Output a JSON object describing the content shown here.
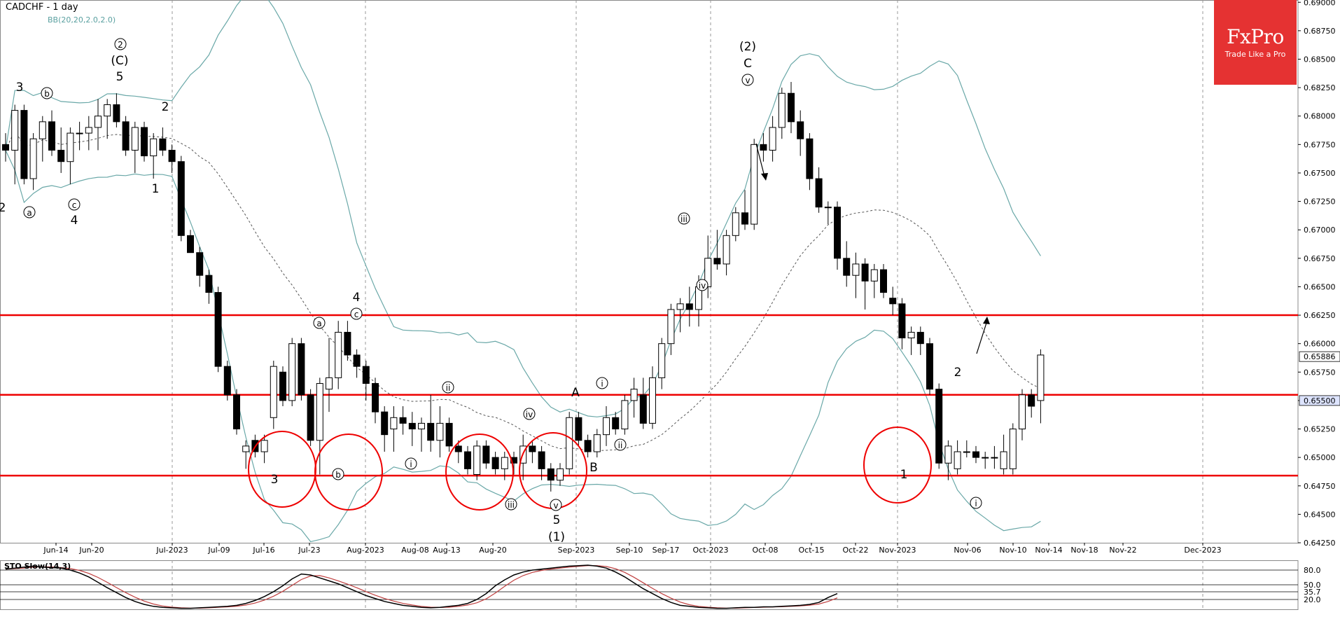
{
  "header": {
    "title": "CADCHF - 1 day",
    "bb_legend": "BB(20,20,2.0,2.0)"
  },
  "logo": {
    "brand": "FxPro",
    "tagline": "Trade Like a Pro"
  },
  "stochastic": {
    "legend": "STO Slow(14,3)",
    "levels": [
      "80.0",
      "50.0",
      "35.7",
      "20.0"
    ]
  },
  "colors": {
    "bull_body": "#ffffff",
    "bear_body": "#000000",
    "bands": "#6aa8a8",
    "middle_band": "#555555",
    "levels": "#ee0000",
    "circles": "#ee0000",
    "brand": "#e53232",
    "sto_main": "#000000",
    "sto_signal": "#c04040"
  },
  "chart_data": {
    "type": "candlestick",
    "symbol": "CADCHF",
    "timeframe": "1 day",
    "ylim": [
      0.6425,
      0.6902
    ],
    "y_ticks": [
      "0.69000",
      "0.68750",
      "0.68500",
      "0.68250",
      "0.68000",
      "0.67750",
      "0.67500",
      "0.67250",
      "0.67000",
      "0.66750",
      "0.66500",
      "0.66250",
      "0.66000",
      "0.65750",
      "0.65500",
      "0.65250",
      "0.65000",
      "0.64750",
      "0.64500",
      "0.64250"
    ],
    "price_tags": [
      "0.65886",
      "0.65500"
    ],
    "x_ticks": [
      "Jun-14",
      "Jun-20",
      "Jul-2023",
      "Jul-09",
      "Jul-16",
      "Jul-23",
      "Aug-2023",
      "Aug-08",
      "Aug-13",
      "Aug-20",
      "Sep-2023",
      "Sep-10",
      "Sep-17",
      "Oct-2023",
      "Oct-08",
      "Oct-15",
      "Oct-22",
      "Nov-2023",
      "Nov-06",
      "Nov-10",
      "Nov-14",
      "Nov-18",
      "Nov-22",
      "Dec-2023"
    ],
    "horizontal_levels": [
      0.6625,
      0.6555,
      0.6484
    ],
    "candles": [
      [
        0.6775,
        0.6785,
        0.676,
        0.677
      ],
      [
        0.677,
        0.681,
        0.674,
        0.6805
      ],
      [
        0.6805,
        0.681,
        0.674,
        0.6745
      ],
      [
        0.6745,
        0.6785,
        0.6735,
        0.678
      ],
      [
        0.678,
        0.68,
        0.676,
        0.6795
      ],
      [
        0.6795,
        0.6805,
        0.6765,
        0.677
      ],
      [
        0.677,
        0.679,
        0.675,
        0.676
      ],
      [
        0.676,
        0.679,
        0.674,
        0.6785
      ],
      [
        0.6785,
        0.6795,
        0.677,
        0.6785
      ],
      [
        0.6785,
        0.68,
        0.677,
        0.679
      ],
      [
        0.679,
        0.6815,
        0.677,
        0.68
      ],
      [
        0.68,
        0.6815,
        0.678,
        0.681
      ],
      [
        0.681,
        0.682,
        0.679,
        0.6795
      ],
      [
        0.6795,
        0.68,
        0.6765,
        0.677
      ],
      [
        0.677,
        0.6795,
        0.675,
        0.679
      ],
      [
        0.679,
        0.6795,
        0.676,
        0.6765
      ],
      [
        0.6765,
        0.6785,
        0.6745,
        0.678
      ],
      [
        0.678,
        0.679,
        0.6765,
        0.677
      ],
      [
        0.677,
        0.6775,
        0.675,
        0.676
      ],
      [
        0.676,
        0.6765,
        0.669,
        0.6695
      ],
      [
        0.6695,
        0.67,
        0.668,
        0.668
      ],
      [
        0.668,
        0.6685,
        0.665,
        0.666
      ],
      [
        0.666,
        0.6665,
        0.6635,
        0.6645
      ],
      [
        0.6645,
        0.665,
        0.6575,
        0.658
      ],
      [
        0.658,
        0.6585,
        0.655,
        0.6555
      ],
      [
        0.6555,
        0.656,
        0.652,
        0.6525
      ],
      [
        0.6505,
        0.6515,
        0.649,
        0.651
      ],
      [
        0.6515,
        0.652,
        0.65,
        0.6505
      ],
      [
        0.6505,
        0.652,
        0.6495,
        0.6515
      ],
      [
        0.6535,
        0.6585,
        0.6525,
        0.658
      ],
      [
        0.6575,
        0.658,
        0.6545,
        0.655
      ],
      [
        0.655,
        0.6605,
        0.6545,
        0.66
      ],
      [
        0.66,
        0.6605,
        0.655,
        0.6555
      ],
      [
        0.6555,
        0.656,
        0.651,
        0.6515
      ],
      [
        0.6515,
        0.657,
        0.6485,
        0.6565
      ],
      [
        0.656,
        0.6605,
        0.654,
        0.657
      ],
      [
        0.657,
        0.662,
        0.656,
        0.661
      ],
      [
        0.661,
        0.662,
        0.6585,
        0.659
      ],
      [
        0.659,
        0.6595,
        0.657,
        0.658
      ],
      [
        0.658,
        0.6585,
        0.655,
        0.6565
      ],
      [
        0.6565,
        0.657,
        0.653,
        0.654
      ],
      [
        0.654,
        0.6545,
        0.6505,
        0.652
      ],
      [
        0.6525,
        0.6545,
        0.6505,
        0.6535
      ],
      [
        0.6535,
        0.6545,
        0.652,
        0.653
      ],
      [
        0.653,
        0.654,
        0.651,
        0.6525
      ],
      [
        0.6525,
        0.6535,
        0.6505,
        0.653
      ],
      [
        0.653,
        0.6555,
        0.6505,
        0.6515
      ],
      [
        0.6515,
        0.6545,
        0.65,
        0.653
      ],
      [
        0.653,
        0.6535,
        0.6505,
        0.651
      ],
      [
        0.651,
        0.6515,
        0.6495,
        0.6505
      ],
      [
        0.6505,
        0.651,
        0.6485,
        0.649
      ],
      [
        0.6485,
        0.6515,
        0.648,
        0.651
      ],
      [
        0.651,
        0.6515,
        0.649,
        0.6495
      ],
      [
        0.65,
        0.6505,
        0.6485,
        0.649
      ],
      [
        0.649,
        0.6505,
        0.648,
        0.65
      ],
      [
        0.65,
        0.6505,
        0.6485,
        0.6495
      ],
      [
        0.6495,
        0.652,
        0.648,
        0.651
      ],
      [
        0.651,
        0.6515,
        0.6495,
        0.6505
      ],
      [
        0.6505,
        0.651,
        0.648,
        0.649
      ],
      [
        0.649,
        0.6495,
        0.647,
        0.648
      ],
      [
        0.648,
        0.6495,
        0.6475,
        0.649
      ],
      [
        0.649,
        0.654,
        0.6485,
        0.6535
      ],
      [
        0.6535,
        0.654,
        0.651,
        0.6515
      ],
      [
        0.6515,
        0.652,
        0.65,
        0.6505
      ],
      [
        0.6505,
        0.6525,
        0.65,
        0.652
      ],
      [
        0.652,
        0.6545,
        0.651,
        0.6535
      ],
      [
        0.6535,
        0.654,
        0.652,
        0.6525
      ],
      [
        0.6525,
        0.6555,
        0.652,
        0.655
      ],
      [
        0.655,
        0.657,
        0.6535,
        0.656
      ],
      [
        0.6555,
        0.657,
        0.6525,
        0.653
      ],
      [
        0.653,
        0.658,
        0.6525,
        0.657
      ],
      [
        0.657,
        0.6605,
        0.656,
        0.66
      ],
      [
        0.66,
        0.6635,
        0.659,
        0.663
      ],
      [
        0.663,
        0.664,
        0.661,
        0.6635
      ],
      [
        0.6635,
        0.665,
        0.6615,
        0.663
      ],
      [
        0.663,
        0.666,
        0.6615,
        0.665
      ],
      [
        0.665,
        0.6695,
        0.664,
        0.6675
      ],
      [
        0.6675,
        0.67,
        0.6665,
        0.667
      ],
      [
        0.667,
        0.67,
        0.666,
        0.6695
      ],
      [
        0.6695,
        0.672,
        0.669,
        0.6715
      ],
      [
        0.6715,
        0.6735,
        0.67,
        0.6705
      ],
      [
        0.6705,
        0.678,
        0.67,
        0.6775
      ],
      [
        0.6775,
        0.6785,
        0.676,
        0.677
      ],
      [
        0.677,
        0.68,
        0.676,
        0.679
      ],
      [
        0.679,
        0.6825,
        0.678,
        0.682
      ],
      [
        0.682,
        0.683,
        0.6785,
        0.6795
      ],
      [
        0.6795,
        0.6805,
        0.6765,
        0.678
      ],
      [
        0.678,
        0.6785,
        0.6735,
        0.6745
      ],
      [
        0.6745,
        0.6755,
        0.6715,
        0.672
      ],
      [
        0.672,
        0.6725,
        0.6705,
        0.672
      ],
      [
        0.672,
        0.6725,
        0.6665,
        0.6675
      ],
      [
        0.6675,
        0.669,
        0.665,
        0.666
      ],
      [
        0.666,
        0.668,
        0.664,
        0.667
      ],
      [
        0.667,
        0.6675,
        0.663,
        0.6655
      ],
      [
        0.6655,
        0.667,
        0.664,
        0.6665
      ],
      [
        0.6665,
        0.667,
        0.664,
        0.6645
      ],
      [
        0.664,
        0.665,
        0.6625,
        0.6635
      ],
      [
        0.6635,
        0.664,
        0.6595,
        0.6605
      ],
      [
        0.6605,
        0.6615,
        0.659,
        0.661
      ],
      [
        0.661,
        0.6615,
        0.659,
        0.66
      ],
      [
        0.66,
        0.6605,
        0.6555,
        0.656
      ],
      [
        0.656,
        0.6565,
        0.649,
        0.6495
      ],
      [
        0.6495,
        0.6515,
        0.648,
        0.651
      ],
      [
        0.649,
        0.6515,
        0.6485,
        0.6505
      ],
      [
        0.6505,
        0.6515,
        0.65,
        0.6505
      ],
      [
        0.6505,
        0.651,
        0.6495,
        0.65
      ],
      [
        0.65,
        0.6505,
        0.649,
        0.65
      ],
      [
        0.65,
        0.651,
        0.649,
        0.65
      ],
      [
        0.649,
        0.652,
        0.6485,
        0.6505
      ],
      [
        0.649,
        0.653,
        0.6485,
        0.6525
      ],
      [
        0.6525,
        0.656,
        0.6515,
        0.6555
      ],
      [
        0.6555,
        0.656,
        0.6535,
        0.6545
      ],
      [
        0.655,
        0.6595,
        0.653,
        0.659
      ]
    ],
    "bollinger_bands": {
      "period": 20
    },
    "wave_labels": [
      "3",
      "2",
      "b",
      "a",
      "c",
      "4",
      "2",
      "(C)",
      "5",
      "1",
      "2",
      "3",
      "b",
      "a",
      "4",
      "c",
      "i",
      "ii",
      "iii",
      "iv",
      "v",
      "5",
      "(1)",
      "A",
      "B",
      "i",
      "ii",
      "iii",
      "iv",
      "v",
      "(2)",
      "C",
      "2",
      "1",
      "i"
    ],
    "stochastic_k": [
      82,
      84,
      86,
      88,
      86,
      85,
      84,
      80,
      74,
      66,
      55,
      44,
      34,
      24,
      16,
      10,
      6,
      4,
      3,
      2,
      2,
      3,
      4,
      5,
      6,
      8,
      12,
      18,
      26,
      36,
      48,
      62,
      72,
      70,
      64,
      58,
      52,
      44,
      36,
      28,
      22,
      16,
      12,
      8,
      6,
      4,
      3,
      4,
      6,
      8,
      12,
      20,
      32,
      48,
      60,
      70,
      76,
      80,
      82,
      84,
      86,
      88,
      89,
      90,
      88,
      84,
      76,
      66,
      54,
      42,
      32,
      22,
      14,
      8,
      6,
      4,
      3,
      2,
      2,
      3,
      4,
      4,
      5,
      5,
      6,
      7,
      8,
      10,
      14,
      24,
      32
    ]
  }
}
